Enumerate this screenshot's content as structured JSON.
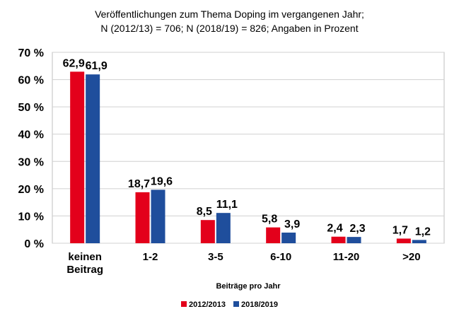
{
  "chart_data": {
    "type": "bar",
    "title_line1": "Veröffentlichungen zum Thema Doping im vergangenen Jahr;",
    "title_line2": "N (2012/13) = 706; N (2018/19) = 826; Angaben in Prozent",
    "xlabel": "Beiträge pro Jahr",
    "ylabel": "",
    "ylim": [
      0,
      70
    ],
    "yticks": [
      "0 %",
      "10 %",
      "20 %",
      "30 %",
      "40 %",
      "50 %",
      "60 %",
      "70 %"
    ],
    "grid": true,
    "legend_position": "bottom",
    "categories": [
      [
        "keinen",
        "Beitrag"
      ],
      [
        "1-2"
      ],
      [
        "3-5"
      ],
      [
        "6-10"
      ],
      [
        "11-20"
      ],
      [
        ">20"
      ]
    ],
    "series": [
      {
        "name": "2012/2013",
        "color": "#e3001b",
        "values": [
          62.9,
          18.7,
          8.5,
          5.8,
          2.4,
          1.7
        ],
        "labels": [
          "62,9",
          "18,7",
          "8,5",
          "5,8",
          "2,4",
          "1,7"
        ]
      },
      {
        "name": "2018/2019",
        "color": "#1f4e9c",
        "values": [
          61.9,
          19.6,
          11.1,
          3.9,
          2.3,
          1.2
        ],
        "labels": [
          "61,9",
          "19,6",
          "11,1",
          "3,9",
          "2,3",
          "1,2"
        ]
      }
    ]
  }
}
